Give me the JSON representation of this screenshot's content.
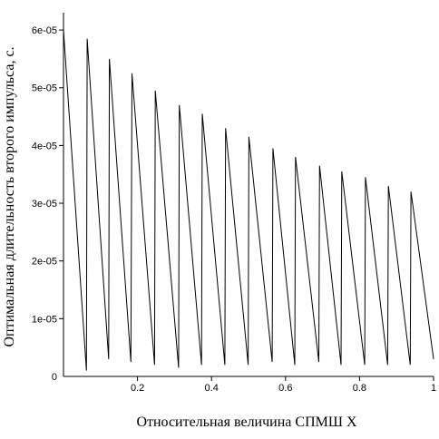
{
  "chart_data": {
    "type": "line",
    "title": "",
    "xlabel": "Относительная величина СПМШ X",
    "ylabel": "Оптимальная длительность второго импульса, с.",
    "xlim": [
      0,
      1
    ],
    "ylim": [
      0,
      6.3e-05
    ],
    "grid": false,
    "x_ticks": [
      {
        "value": 0,
        "label": "0"
      },
      {
        "value": 0.2,
        "label": "0.2"
      },
      {
        "value": 0.4,
        "label": "0.4"
      },
      {
        "value": 0.6,
        "label": "0.6"
      },
      {
        "value": 0.8,
        "label": "0.8"
      },
      {
        "value": 1,
        "label": "1"
      }
    ],
    "y_ticks": [
      {
        "value": 1e-05,
        "label": "1e-05"
      },
      {
        "value": 2e-05,
        "label": "2e-05"
      },
      {
        "value": 3e-05,
        "label": "3e-05"
      },
      {
        "value": 4e-05,
        "label": "4e-05"
      },
      {
        "value": 5e-05,
        "label": "5e-05"
      },
      {
        "value": 6e-05,
        "label": "6e-05"
      }
    ],
    "series": [
      {
        "x": [
          0.0,
          0.062,
          0.064,
          0.122,
          0.124,
          0.182,
          0.185,
          0.246,
          0.248,
          0.311,
          0.313,
          0.373,
          0.375,
          0.436,
          0.438,
          0.499,
          0.501,
          0.564,
          0.566,
          0.625,
          0.627,
          0.69,
          0.692,
          0.75,
          0.752,
          0.814,
          0.816,
          0.876,
          0.878,
          0.937,
          0.939,
          1.0
        ],
        "y": [
          6e-05,
          1e-06,
          5.85e-05,
          3e-06,
          5.5e-05,
          2.5e-06,
          5.25e-05,
          2e-06,
          4.95e-05,
          1.5e-06,
          4.7e-05,
          2e-06,
          4.55e-05,
          2e-06,
          4.3e-05,
          2e-06,
          4.15e-05,
          2.5e-06,
          3.95e-05,
          2e-06,
          3.8e-05,
          2.5e-06,
          3.65e-05,
          2e-06,
          3.55e-05,
          2e-06,
          3.45e-05,
          2e-06,
          3.3e-05,
          2e-06,
          3.2e-05,
          3e-06
        ]
      }
    ]
  }
}
